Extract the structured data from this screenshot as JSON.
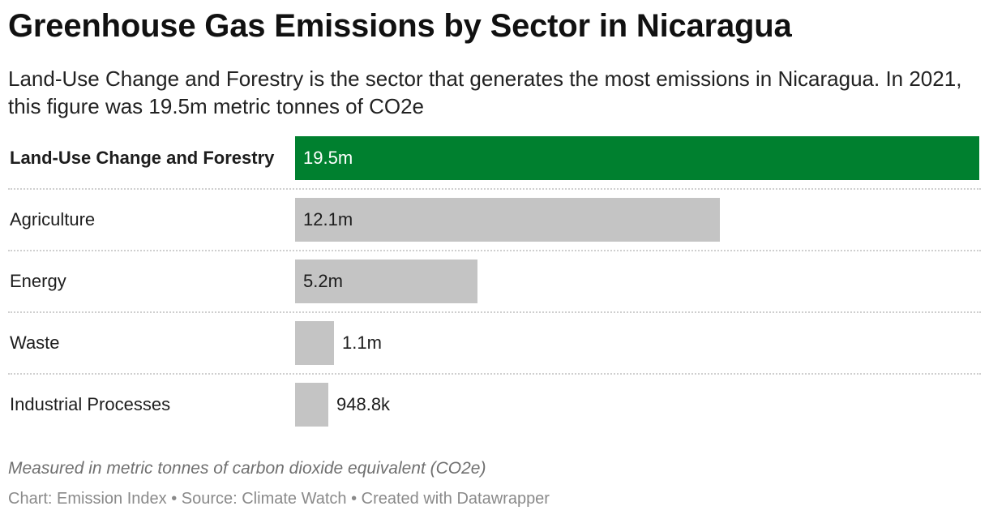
{
  "title": "Greenhouse Gas Emissions by Sector in Nicaragua",
  "subtitle": "Land-Use Change and Forestry is the sector that generates the most emissions in Nicaragua. In 2021, this figure was 19.5m metric tonnes of CO2e",
  "notes": "Measured in metric tonnes of carbon dioxide equivalent (CO2e)",
  "footer": "Chart: Emission Index • Source: Climate Watch • Created with Datawrapper",
  "colors": {
    "highlight": "#00802f",
    "default_bar": "#c4c4c4",
    "highlight_text": "#ffffff",
    "default_text": "#1d1d1d"
  },
  "chart_data": {
    "type": "bar",
    "orientation": "horizontal",
    "categories": [
      "Land-Use Change and Forestry",
      "Agriculture",
      "Energy",
      "Waste",
      "Industrial Processes"
    ],
    "values": [
      19500000,
      12100000,
      5200000,
      1100000,
      948800
    ],
    "value_labels": [
      "19.5m",
      "12.1m",
      "5.2m",
      "1.1m",
      "948.8k"
    ],
    "highlighted": "Land-Use Change and Forestry",
    "xlim": [
      0,
      19500000
    ],
    "grid": false,
    "legend": "none"
  }
}
